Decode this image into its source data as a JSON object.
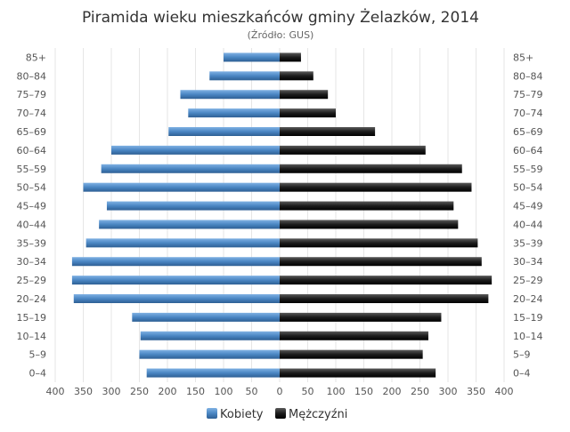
{
  "chart_data": {
    "type": "bar",
    "orientation": "horizontal-diverging",
    "title": "Piramida wieku mieszkańców gminy Żelazków, 2014",
    "subtitle": "(Źródło: GUS)",
    "categories": [
      "0–4",
      "5–9",
      "10–14",
      "15–19",
      "20–24",
      "25–29",
      "30–34",
      "35–39",
      "40–44",
      "45–49",
      "50–54",
      "55–59",
      "60–64",
      "65–69",
      "70–74",
      "75–79",
      "80–84",
      "85+"
    ],
    "series": [
      {
        "name": "Kobiety",
        "side": "left",
        "color": "#4a86c3",
        "values": [
          237,
          250,
          248,
          263,
          367,
          370,
          370,
          345,
          322,
          308,
          350,
          318,
          300,
          198,
          163,
          177,
          125,
          100
        ]
      },
      {
        "name": "Mężczyźni",
        "side": "right",
        "color": "#1c1c1c",
        "values": [
          278,
          255,
          265,
          288,
          372,
          378,
          360,
          353,
          318,
          310,
          342,
          325,
          260,
          170,
          100,
          86,
          60,
          38
        ]
      }
    ],
    "xlim": [
      -400,
      400
    ],
    "xticks": [
      "400",
      "350",
      "300",
      "250",
      "200",
      "150",
      "100",
      "50",
      "0",
      "50",
      "100",
      "150",
      "200",
      "250",
      "300",
      "350",
      "400"
    ],
    "grid": true,
    "legend_position": "bottom"
  }
}
